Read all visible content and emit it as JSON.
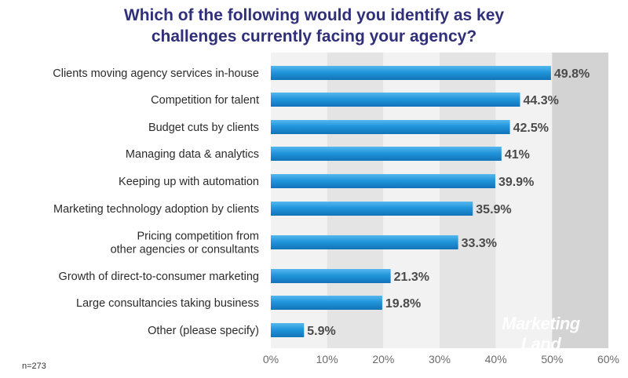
{
  "chart_data": {
    "type": "bar",
    "orientation": "horizontal",
    "title_lines": [
      "Which of the following would you identify as key",
      "challenges currently facing your agency?"
    ],
    "categories": [
      [
        "Clients moving agency services in-house"
      ],
      [
        "Competition for talent"
      ],
      [
        "Budget cuts by clients"
      ],
      [
        "Managing data & analytics"
      ],
      [
        "Keeping up with automation"
      ],
      [
        "Marketing technology adoption by clients"
      ],
      [
        "Pricing competition from",
        "other agencies or consultants"
      ],
      [
        "Growth of direct-to-consumer marketing"
      ],
      [
        "Large consultancies taking business"
      ],
      [
        "Other (please specify)"
      ]
    ],
    "values": [
      49.8,
      44.3,
      42.5,
      41,
      39.9,
      35.9,
      33.3,
      21.3,
      19.8,
      5.9
    ],
    "value_labels": [
      "49.8%",
      "44.3%",
      "42.5%",
      "41%",
      "39.9%",
      "35.9%",
      "33.3%",
      "21.3%",
      "19.8%",
      "5.9%"
    ],
    "xlim": [
      0,
      60
    ],
    "xticks": [
      0,
      10,
      20,
      30,
      40,
      50,
      60
    ],
    "xtick_labels": [
      "0%",
      "10%",
      "20%",
      "30%",
      "40%",
      "50%",
      "60%"
    ],
    "bar_color": "#1f8fd6",
    "background_bands": [
      "#f2f2f2",
      "#e4e4e4",
      "#d3d3d3"
    ],
    "grid": "alternating vertical bands"
  },
  "sample_note": "n=273",
  "watermark": "Marketing Land"
}
